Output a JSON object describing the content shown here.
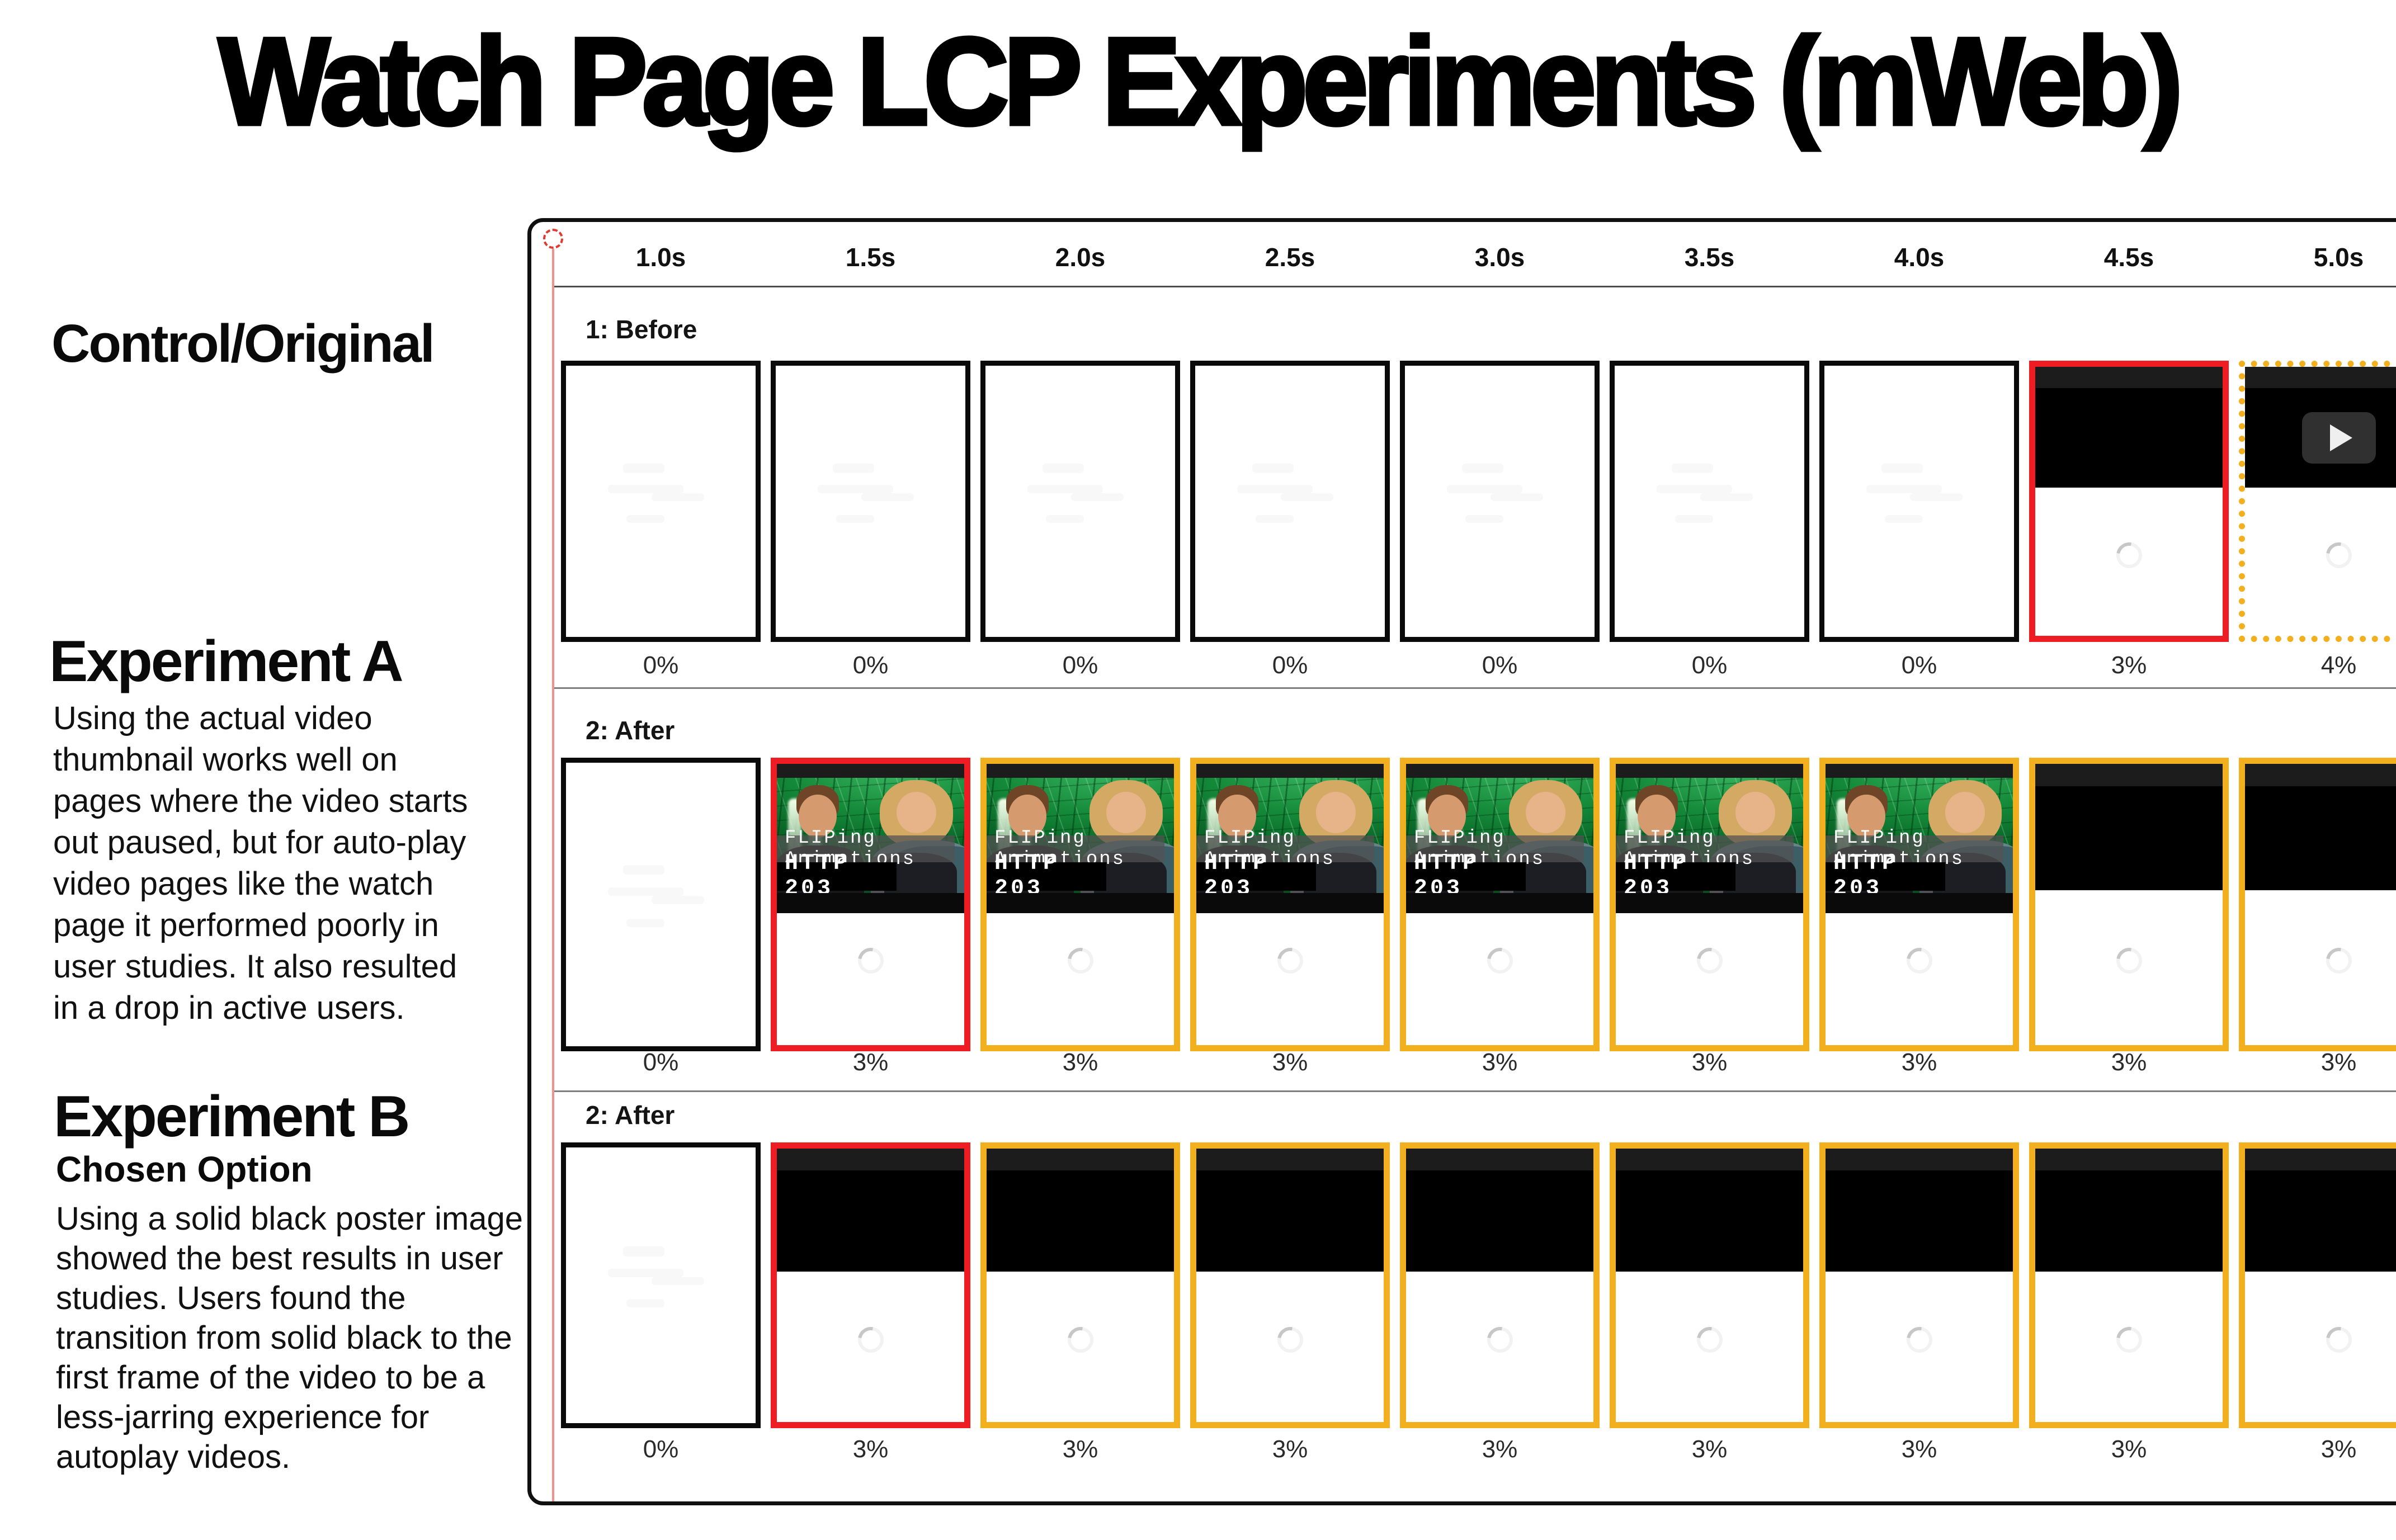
{
  "title": "Watch Page LCP Experiments (mWeb)",
  "colors": {
    "red_border": "#ee1d23",
    "yellow_border": "#f2b01e",
    "marker_red": "#e23a30",
    "timeline_red": "#f29189",
    "divider_gray": "#7f7f7f",
    "poster_black": "#000000",
    "thumb_green": "#148a39"
  },
  "sidebar": {
    "control_label": "Control/Original",
    "experiment_a": {
      "heading": "Experiment A",
      "body": "Using the actual video\nthumbnail works well on\npages where the video starts\nout paused, but for auto-play\nvideo pages like the watch\npage it performed poorly in\nuser studies. It also resulted\nin a drop in active users."
    },
    "experiment_b": {
      "heading": "Experiment B",
      "subheading": "Chosen Option",
      "body": "Using a solid black poster image\nshowed the best results in user\nstudies. Users found the\ntransition from solid black to the\nfirst frame of the video to be a\nless-jarring experience for\nautoplay videos."
    }
  },
  "thumbnail": {
    "caption_title": "FLIPing Animations",
    "caption_show": "HTTP 203"
  },
  "panel": {
    "timestamps": [
      "1.0s",
      "1.5s",
      "2.0s",
      "2.5s",
      "3.0s",
      "3.5s",
      "4.0s",
      "4.5s",
      "5.0s"
    ],
    "rows": [
      {
        "label": "1: Before",
        "frames": [
          {
            "type": "blank",
            "border": "black",
            "pct": "0%"
          },
          {
            "type": "blank",
            "border": "black",
            "pct": "0%"
          },
          {
            "type": "blank",
            "border": "black",
            "pct": "0%"
          },
          {
            "type": "blank",
            "border": "black",
            "pct": "0%"
          },
          {
            "type": "blank",
            "border": "black",
            "pct": "0%"
          },
          {
            "type": "blank",
            "border": "black",
            "pct": "0%"
          },
          {
            "type": "blank",
            "border": "black",
            "pct": "0%"
          },
          {
            "type": "poster",
            "border": "red",
            "pct": "3%"
          },
          {
            "type": "poster-play",
            "border": "yellow-dotted",
            "pct": "4%"
          }
        ]
      },
      {
        "label": "2: After",
        "frames": [
          {
            "type": "blank",
            "border": "black",
            "pct": "0%"
          },
          {
            "type": "thumb",
            "border": "red",
            "pct": "3%"
          },
          {
            "type": "thumb",
            "border": "yellow",
            "pct": "3%"
          },
          {
            "type": "thumb",
            "border": "yellow",
            "pct": "3%"
          },
          {
            "type": "thumb",
            "border": "yellow",
            "pct": "3%"
          },
          {
            "type": "thumb",
            "border": "yellow",
            "pct": "3%"
          },
          {
            "type": "thumb",
            "border": "yellow",
            "pct": "3%"
          },
          {
            "type": "poster",
            "border": "yellow",
            "pct": "3%"
          },
          {
            "type": "poster",
            "border": "yellow",
            "pct": "3%"
          }
        ]
      },
      {
        "label": "2: After",
        "frames": [
          {
            "type": "blank",
            "border": "black",
            "pct": "0%"
          },
          {
            "type": "poster",
            "border": "red",
            "pct": "3%"
          },
          {
            "type": "poster",
            "border": "yellow",
            "pct": "3%"
          },
          {
            "type": "poster",
            "border": "yellow",
            "pct": "3%"
          },
          {
            "type": "poster",
            "border": "yellow",
            "pct": "3%"
          },
          {
            "type": "poster",
            "border": "yellow",
            "pct": "3%"
          },
          {
            "type": "poster",
            "border": "yellow",
            "pct": "3%"
          },
          {
            "type": "poster",
            "border": "yellow",
            "pct": "3%"
          },
          {
            "type": "poster",
            "border": "yellow",
            "pct": "3%"
          }
        ]
      }
    ]
  }
}
